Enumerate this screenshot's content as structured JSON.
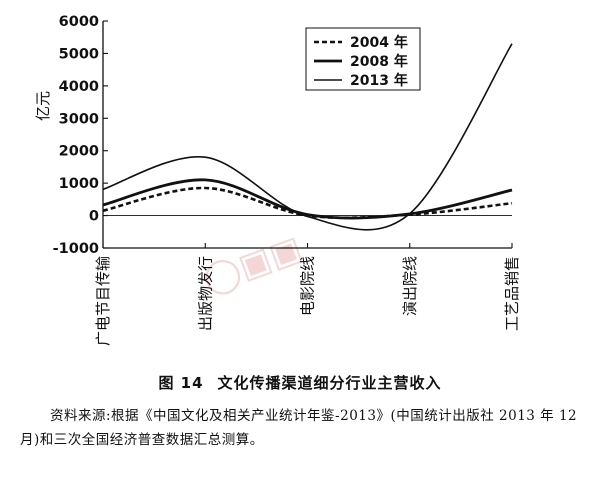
{
  "chart_data": {
    "type": "line",
    "ylabel": "亿元",
    "ylim": [
      -1000,
      6000
    ],
    "yticks": [
      -1000,
      0,
      1000,
      2000,
      3000,
      4000,
      5000,
      6000
    ],
    "categories": [
      "广电节目传输",
      "出版物发行",
      "电影院线",
      "演出院线",
      "工艺品销售"
    ],
    "series": [
      {
        "name": "2004 年",
        "style": "dashed",
        "values": [
          150,
          850,
          0,
          30,
          380
        ]
      },
      {
        "name": "2008 年",
        "style": "thick",
        "values": [
          330,
          1100,
          30,
          50,
          790
        ]
      },
      {
        "name": "2013 年",
        "style": "thin",
        "values": [
          810,
          1800,
          -30,
          60,
          5300
        ]
      }
    ],
    "legend": "top-right",
    "grid": false
  },
  "figure": {
    "number": "图 14",
    "title": "文化传播渠道细分行业主营收入"
  },
  "source_note": "资料来源:根据《中国文化及相关产业统计年鉴-2013》(中国统计出版社 2013 年 12 月)和三次全国经济普查数据汇总测算。",
  "watermark": {
    "brand": "中国经济网",
    "slogan": "文化产业频道",
    "url": "www.ce.cn",
    "color": "#d24a4a"
  }
}
